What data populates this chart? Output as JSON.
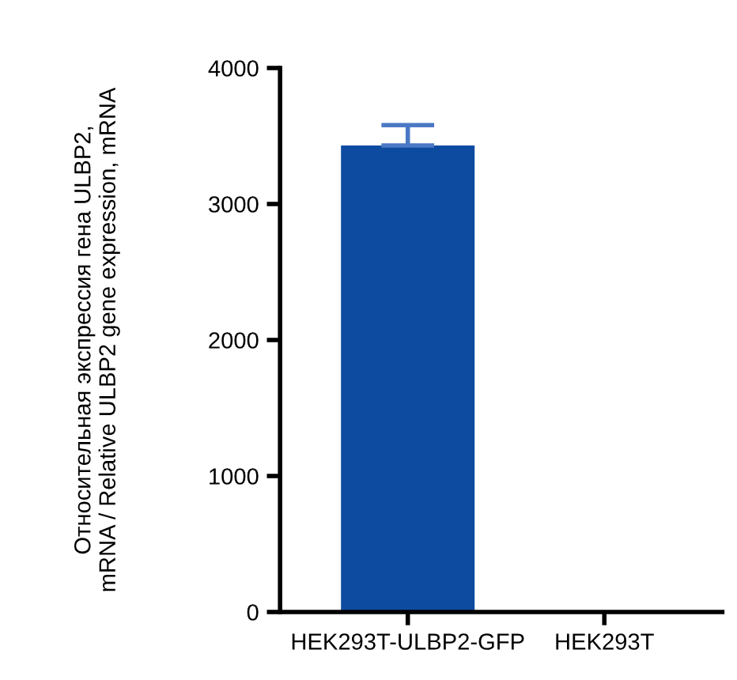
{
  "chart_data": {
    "type": "bar",
    "ylabel": "Относительная экспрессия гена ULBP2,\nmRNA / Relative ULBP2 gene expression, mRNA",
    "categories": [
      "HEK293T-ULBP2-GFP",
      "HEK293T"
    ],
    "values": [
      3430,
      0
    ],
    "errors": [
      [
        3430,
        3580
      ],
      null
    ],
    "color": "#0d4ba0",
    "ylim": [
      0,
      4000
    ],
    "yticks": [
      0,
      1000,
      2000,
      3000,
      4000
    ],
    "grid": false
  }
}
